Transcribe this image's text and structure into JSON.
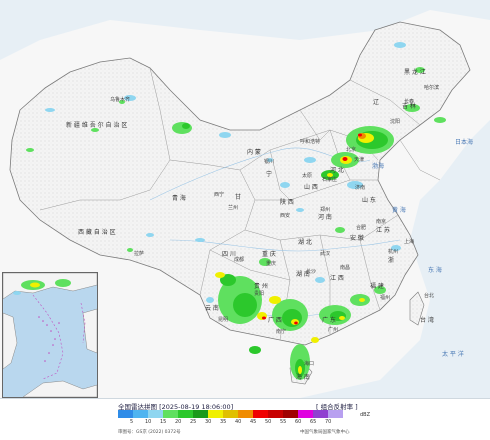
{
  "footer": {
    "title": "全国雷达拼图 [2025-08-19 18:06:00]",
    "product": "[ 组合反射率 ]",
    "unit": "dBZ",
    "approval": "审图号：GS京 (2022) 0372号",
    "source": "中国气象局国家气象中心"
  },
  "legend": {
    "ticks": [
      "5",
      "10",
      "15",
      "20",
      "25",
      "30",
      "35",
      "40",
      "45",
      "50",
      "55",
      "60",
      "65",
      "70"
    ],
    "colors": [
      "#2f8ce8",
      "#4fb4f0",
      "#8fd6f0",
      "#5fe05f",
      "#2cc82c",
      "#1a9a1a",
      "#f0f000",
      "#e0c000",
      "#f08c00",
      "#f00000",
      "#c80000",
      "#a00000",
      "#e000e0",
      "#9040d0",
      "#b8a0f0"
    ]
  },
  "regions": [
    {
      "name": "新 疆 维 吾 尔 自 治 区"
    },
    {
      "name": "西 藏 自 治 区"
    },
    {
      "name": "青 海"
    },
    {
      "name": "内 蒙"
    },
    {
      "name": "黑 龙 江"
    },
    {
      "name": "吉 林"
    },
    {
      "name": "辽"
    },
    {
      "name": "四 川"
    },
    {
      "name": "甘"
    },
    {
      "name": "宁"
    },
    {
      "name": "陕 西"
    },
    {
      "name": "山 西"
    },
    {
      "name": "河 北"
    },
    {
      "name": "山 东"
    },
    {
      "name": "河 南"
    },
    {
      "name": "湖 北"
    },
    {
      "name": "湖 南"
    },
    {
      "name": "江 西"
    },
    {
      "name": "安 徽"
    },
    {
      "name": "江 苏"
    },
    {
      "name": "浙"
    },
    {
      "name": "福 建"
    },
    {
      "name": "广 东"
    },
    {
      "name": "广 西"
    },
    {
      "name": "贵 州"
    },
    {
      "name": "云 南"
    },
    {
      "name": "重 庆"
    },
    {
      "name": "海 南"
    },
    {
      "name": "台 湾"
    }
  ],
  "cities": [
    {
      "name": "乌鲁木齐"
    },
    {
      "name": "拉萨"
    },
    {
      "name": "西宁"
    },
    {
      "name": "兰州"
    },
    {
      "name": "银川"
    },
    {
      "name": "呼和浩特"
    },
    {
      "name": "北京"
    },
    {
      "name": "天津"
    },
    {
      "name": "哈尔滨"
    },
    {
      "name": "长春"
    },
    {
      "name": "沈阳"
    },
    {
      "name": "石家庄"
    },
    {
      "name": "太原"
    },
    {
      "name": "济南"
    },
    {
      "name": "西安"
    },
    {
      "name": "郑州"
    },
    {
      "name": "成都"
    },
    {
      "name": "重庆"
    },
    {
      "name": "武汉"
    },
    {
      "name": "合肥"
    },
    {
      "name": "南京"
    },
    {
      "name": "上海"
    },
    {
      "name": "杭州"
    },
    {
      "name": "长沙"
    },
    {
      "name": "南昌"
    },
    {
      "name": "福州"
    },
    {
      "name": "台北"
    },
    {
      "name": "贵阳"
    },
    {
      "name": "昆明"
    },
    {
      "name": "南宁"
    },
    {
      "name": "广州"
    },
    {
      "name": "海口"
    }
  ],
  "seas": [
    {
      "name": "日本海"
    },
    {
      "name": "黄 海"
    },
    {
      "name": "东 海"
    },
    {
      "name": "太 平 洋"
    },
    {
      "name": "渤海"
    },
    {
      "name": "南 海"
    }
  ]
}
